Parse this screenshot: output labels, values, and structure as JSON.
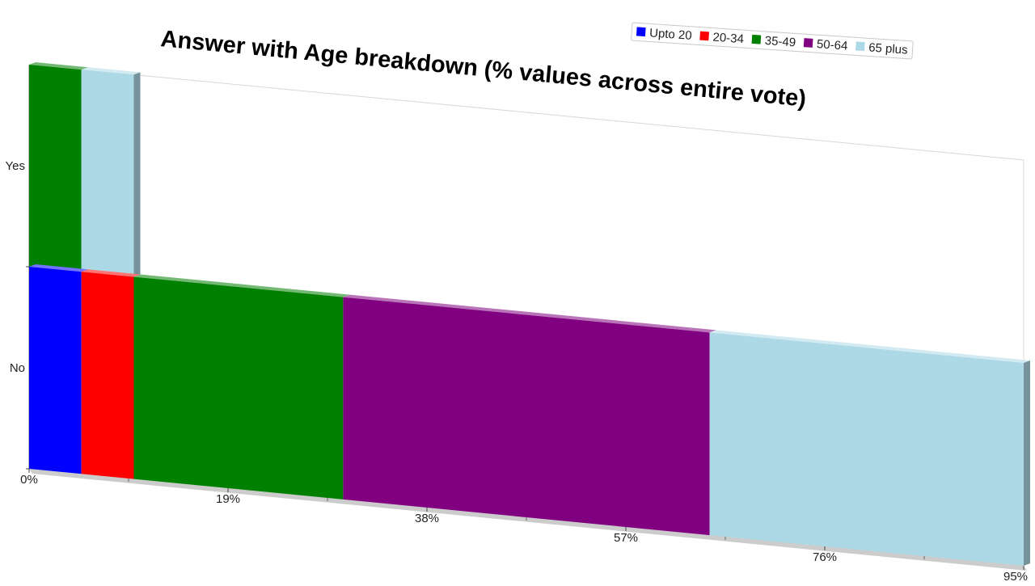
{
  "chart_data": {
    "type": "bar",
    "orientation": "horizontal",
    "stacked": true,
    "title": "Answer with Age breakdown (% values across entire vote)",
    "categories": [
      "Yes",
      "No"
    ],
    "x_ticks": [
      "0%",
      "19%",
      "38%",
      "57%",
      "76%",
      "95%"
    ],
    "xlim": [
      0,
      95
    ],
    "legend_position": "top-right",
    "series": [
      {
        "name": "Upto 20",
        "color": "#0000ff",
        "values": [
          0,
          5
        ]
      },
      {
        "name": "20-34",
        "color": "#ff0000",
        "values": [
          0,
          5
        ]
      },
      {
        "name": "35-49",
        "color": "#008000",
        "values": [
          5,
          20
        ]
      },
      {
        "name": "50-64",
        "color": "#800080",
        "values": [
          0,
          35
        ]
      },
      {
        "name": "65 plus",
        "color": "#add8e6",
        "values": [
          5,
          30
        ]
      }
    ]
  }
}
